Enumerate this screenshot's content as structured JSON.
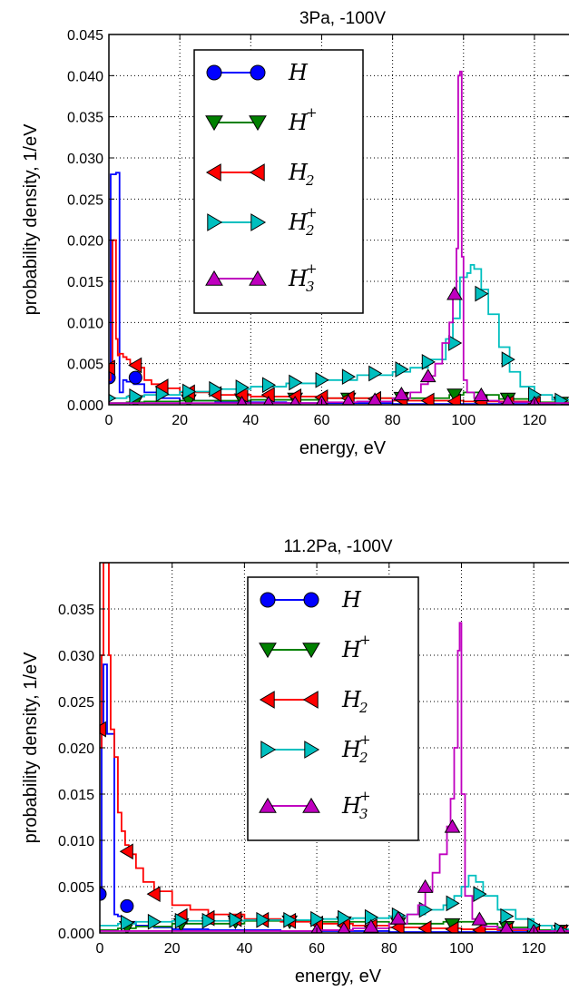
{
  "chart_data": [
    {
      "type": "line",
      "title": "3Pa, -100V",
      "xlabel": "energy, eV",
      "ylabel": "probability density, 1/eV",
      "xlim": [
        0,
        130
      ],
      "ylim": [
        0,
        0.045
      ],
      "xticks": [
        "0",
        "20",
        "40",
        "60",
        "80",
        "100",
        "120"
      ],
      "xtick_values": [
        0,
        20,
        40,
        60,
        80,
        100,
        120
      ],
      "yticks": [
        "0.000",
        "0.005",
        "0.010",
        "0.015",
        "0.020",
        "0.025",
        "0.030",
        "0.035",
        "0.040",
        "0.045"
      ],
      "ytick_values": [
        0,
        0.005,
        0.01,
        0.015,
        0.02,
        0.025,
        0.03,
        0.035,
        0.04,
        0.045
      ],
      "grid": true,
      "legend_position": "upper-left",
      "series": [
        {
          "name": "H",
          "sup": "",
          "sub": "",
          "color": "#0000ff",
          "marker": "circle",
          "x": [
            0,
            0.5,
            1,
            1.5,
            2,
            2.5,
            3,
            4,
            5,
            7,
            10,
            15,
            20,
            30,
            50,
            80,
            110,
            130
          ],
          "y": [
            0.003,
            0.028,
            0.028,
            0.028,
            0.0282,
            0.0282,
            0.0015,
            0.003,
            0.0028,
            0.0025,
            0.0015,
            0.0008,
            0.0005,
            0.0003,
            0.0002,
            0.0001,
            0.0001,
            0.0001
          ],
          "marker_x": [
            0,
            7.5
          ],
          "marker_y": [
            0.0033,
            0.0033
          ]
        },
        {
          "name": "H",
          "sup": "+",
          "sub": "",
          "color": "#008000",
          "marker": "triangle-down",
          "x": [
            0,
            5,
            10,
            20,
            40,
            60,
            80,
            90,
            96,
            100,
            105,
            110,
            120,
            130
          ],
          "y": [
            0.0002,
            0.0003,
            0.0004,
            0.0005,
            0.0006,
            0.0008,
            0.0008,
            0.0008,
            0.0012,
            0.0015,
            0.0012,
            0.0007,
            0.0003,
            0.0001
          ],
          "marker_x": [
            7.5,
            22.5,
            37.5,
            52.5,
            67.5,
            82.5,
            97.5,
            112.5,
            127.5
          ],
          "marker_y": [
            0.0004,
            0.0005,
            0.0006,
            0.0007,
            0.0007,
            0.0008,
            0.0012,
            0.0007,
            0.0002
          ]
        },
        {
          "name": "H",
          "sup": "",
          "sub": "2",
          "color": "#ff0000",
          "marker": "triangle-left",
          "x": [
            0,
            0.5,
            1,
            1.5,
            2,
            2.5,
            3,
            4,
            5,
            6,
            7,
            8,
            10,
            12,
            15,
            20,
            30,
            40,
            60,
            80,
            100,
            120,
            130
          ],
          "y": [
            0.003,
            0.004,
            0.02,
            0.02,
            0.008,
            0.006,
            0.0062,
            0.0058,
            0.0055,
            0.005,
            0.0048,
            0.0045,
            0.003,
            0.0025,
            0.002,
            0.0015,
            0.0012,
            0.001,
            0.0008,
            0.0005,
            0.0004,
            0.0002,
            0.0001
          ],
          "marker_x": [
            0,
            7.5,
            15,
            22.5,
            30,
            37.5,
            45,
            52.5,
            60,
            67.5,
            75,
            82.5,
            90,
            97.5,
            105,
            112.5,
            120
          ],
          "marker_y": [
            0.0045,
            0.0048,
            0.0022,
            0.0015,
            0.0013,
            0.0012,
            0.0012,
            0.001,
            0.0009,
            0.0008,
            0.0007,
            0.0006,
            0.0005,
            0.0004,
            0.0003,
            0.0002,
            0.0001
          ]
        },
        {
          "name": "H",
          "sup": "+",
          "sub": "2",
          "color": "#00bfbf",
          "marker": "triangle-right",
          "x": [
            0,
            5,
            10,
            20,
            30,
            40,
            50,
            60,
            70,
            80,
            85,
            90,
            95,
            97,
            99,
            101,
            102,
            103,
            105,
            107,
            110,
            113,
            116,
            120,
            125,
            130
          ],
          "y": [
            0.0008,
            0.001,
            0.0012,
            0.0016,
            0.0019,
            0.0022,
            0.0026,
            0.003,
            0.0036,
            0.004,
            0.0045,
            0.0055,
            0.008,
            0.0105,
            0.0155,
            0.016,
            0.017,
            0.0165,
            0.014,
            0.011,
            0.007,
            0.004,
            0.0022,
            0.0012,
            0.0006,
            0.0003
          ],
          "marker_x": [
            0,
            7.5,
            15,
            22.5,
            30,
            37.5,
            45,
            52.5,
            60,
            67.5,
            75,
            82.5,
            90,
            97.5,
            105,
            112.5,
            120,
            127.5
          ],
          "marker_y": [
            0.0008,
            0.001,
            0.0013,
            0.0016,
            0.0019,
            0.0021,
            0.0024,
            0.0027,
            0.003,
            0.0034,
            0.0038,
            0.0043,
            0.0052,
            0.0075,
            0.0135,
            0.0055,
            0.0012,
            0.0005
          ]
        },
        {
          "name": "H",
          "sup": "+",
          "sub": "3",
          "color": "#bf00bf",
          "marker": "triangle-up",
          "x": [
            0,
            20,
            40,
            60,
            70,
            80,
            85,
            88,
            90,
            92,
            94,
            96,
            97,
            98,
            98.5,
            99,
            99.5,
            100,
            101,
            103,
            106,
            110,
            120,
            130
          ],
          "y": [
            0.0002,
            0.0002,
            0.0002,
            0.0003,
            0.0004,
            0.0008,
            0.0015,
            0.0025,
            0.0035,
            0.005,
            0.0075,
            0.01,
            0.014,
            0.019,
            0.04,
            0.0405,
            0.018,
            0.003,
            0.0015,
            0.0008,
            0.0005,
            0.0003,
            0.0002,
            0.0001
          ],
          "marker_x": [
            37.5,
            45,
            52.5,
            60,
            67.5,
            75,
            82.5,
            90,
            97.5,
            105,
            112.5,
            120
          ],
          "marker_y": [
            0.0002,
            0.0002,
            0.0002,
            0.0003,
            0.0004,
            0.0006,
            0.0013,
            0.0035,
            0.0135,
            0.0012,
            0.0004,
            0.0002
          ]
        }
      ]
    },
    {
      "type": "line",
      "title": "11.2Pa, -100V",
      "xlabel": "energy, eV",
      "ylabel": "probability density, 1/eV",
      "xlim": [
        0,
        130
      ],
      "ylim": [
        0,
        0.04
      ],
      "xticks": [
        "0",
        "20",
        "40",
        "60",
        "80",
        "100",
        "120"
      ],
      "xtick_values": [
        0,
        20,
        40,
        60,
        80,
        100,
        120
      ],
      "yticks": [
        "0.000",
        "0.005",
        "0.010",
        "0.015",
        "0.020",
        "0.025",
        "0.030",
        "0.035"
      ],
      "ytick_values": [
        0,
        0.005,
        0.01,
        0.015,
        0.02,
        0.025,
        0.03,
        0.035
      ],
      "grid": true,
      "legend_position": "upper-center",
      "series": [
        {
          "name": "H",
          "sup": "",
          "sub": "",
          "color": "#0000ff",
          "marker": "circle",
          "x": [
            0,
            0.5,
            1,
            1.5,
            2,
            2.5,
            3,
            4,
            5,
            6,
            7,
            10,
            15,
            20,
            30,
            50,
            80,
            110,
            130
          ],
          "y": [
            0.004,
            0.0215,
            0.029,
            0.029,
            0.0215,
            0.0215,
            0.0215,
            0.002,
            0.0018,
            0.0015,
            0.0012,
            0.0008,
            0.0006,
            0.0004,
            0.0003,
            0.0002,
            0.0001,
            0.0001,
            0.0001
          ],
          "marker_x": [
            0,
            7.5
          ],
          "marker_y": [
            0.0042,
            0.0029
          ]
        },
        {
          "name": "H",
          "sup": "+",
          "sub": "",
          "color": "#008000",
          "marker": "triangle-down",
          "x": [
            0,
            5,
            10,
            20,
            40,
            60,
            80,
            90,
            95,
            100,
            105,
            110,
            120,
            130
          ],
          "y": [
            0.0003,
            0.0005,
            0.0007,
            0.001,
            0.0013,
            0.0012,
            0.001,
            0.001,
            0.0012,
            0.0012,
            0.001,
            0.0006,
            0.0003,
            0.0001
          ],
          "marker_x": [
            7.5,
            22.5,
            37.5,
            52.5,
            67.5,
            82.5,
            97.5,
            112.5,
            127.5
          ],
          "marker_y": [
            0.0006,
            0.0009,
            0.0012,
            0.0012,
            0.0011,
            0.001,
            0.0009,
            0.0006,
            0.0002
          ]
        },
        {
          "name": "H",
          "sup": "",
          "sub": "2",
          "color": "#ff0000",
          "marker": "triangle-left",
          "x": [
            0,
            0.5,
            1,
            1.5,
            2,
            2.5,
            3,
            4,
            5,
            6,
            7,
            8,
            10,
            12,
            15,
            20,
            25,
            30,
            40,
            50,
            60,
            70,
            80,
            90,
            100,
            110,
            120,
            130
          ],
          "y": [
            0.02,
            0.03,
            0.04,
            0.04,
            0.04,
            0.03,
            0.022,
            0.019,
            0.013,
            0.011,
            0.0095,
            0.0085,
            0.007,
            0.0055,
            0.0045,
            0.003,
            0.0025,
            0.002,
            0.0015,
            0.0012,
            0.001,
            0.0008,
            0.0006,
            0.0005,
            0.0004,
            0.0003,
            0.0002,
            0.0001
          ],
          "marker_x": [
            0,
            7.5,
            15,
            22.5,
            30,
            37.5,
            45,
            52.5,
            60,
            67.5,
            75,
            82.5,
            90,
            97.5,
            105,
            112.5,
            120,
            127.5
          ],
          "marker_y": [
            0.022,
            0.0088,
            0.0042,
            0.0018,
            0.0016,
            0.0015,
            0.0014,
            0.0013,
            0.001,
            0.0008,
            0.0007,
            0.0006,
            0.0005,
            0.0004,
            0.0003,
            0.0003,
            0.0002,
            0.0001
          ]
        },
        {
          "name": "H",
          "sup": "+",
          "sub": "2",
          "color": "#00bfbf",
          "marker": "triangle-right",
          "x": [
            0,
            5,
            10,
            20,
            30,
            40,
            50,
            60,
            70,
            80,
            85,
            90,
            95,
            98,
            100,
            102,
            104,
            106,
            110,
            115,
            120,
            125,
            130
          ],
          "y": [
            0.0008,
            0.001,
            0.0012,
            0.0013,
            0.0013,
            0.0014,
            0.0014,
            0.0015,
            0.0016,
            0.0018,
            0.002,
            0.0025,
            0.003,
            0.004,
            0.005,
            0.0062,
            0.0055,
            0.004,
            0.0025,
            0.0015,
            0.0008,
            0.0004,
            0.0002
          ],
          "marker_x": [
            7.5,
            15,
            22.5,
            30,
            37.5,
            45,
            52.5,
            60,
            67.5,
            75,
            82.5,
            90,
            97.5,
            105,
            112.5,
            120,
            127.5
          ],
          "marker_y": [
            0.0011,
            0.0012,
            0.0013,
            0.0013,
            0.0014,
            0.0014,
            0.0014,
            0.0015,
            0.0016,
            0.0017,
            0.0019,
            0.0025,
            0.0032,
            0.0042,
            0.0018,
            0.0008,
            0.0003
          ]
        },
        {
          "name": "H",
          "sup": "+",
          "sub": "3",
          "color": "#bf00bf",
          "marker": "triangle-up",
          "x": [
            0,
            20,
            40,
            60,
            70,
            80,
            85,
            88,
            90,
            92,
            94,
            96,
            97,
            98,
            99,
            99.5,
            100,
            101,
            103,
            106,
            110,
            120,
            130
          ],
          "y": [
            0.0002,
            0.0002,
            0.0002,
            0.0003,
            0.0005,
            0.001,
            0.002,
            0.003,
            0.0045,
            0.0065,
            0.0085,
            0.0115,
            0.0145,
            0.02,
            0.0305,
            0.0335,
            0.015,
            0.004,
            0.0015,
            0.0007,
            0.0004,
            0.0002,
            0.0001
          ],
          "marker_x": [
            60,
            67.5,
            75,
            82.5,
            90,
            97.5,
            105,
            112.5,
            120,
            127.5
          ],
          "marker_y": [
            0.0003,
            0.0004,
            0.0007,
            0.0016,
            0.005,
            0.0115,
            0.0015,
            0.0005,
            0.0002,
            0.0001
          ]
        }
      ]
    }
  ]
}
